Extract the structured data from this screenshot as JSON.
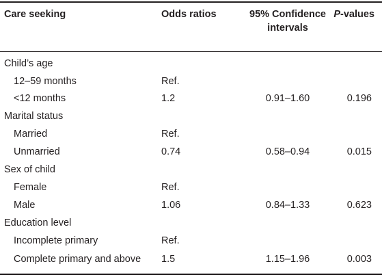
{
  "header": {
    "care_seeking": "Care seeking",
    "odds_ratios": "Odds ratios",
    "ci_line1": "95% Confidence",
    "ci_line2": "intervals",
    "p_italic": "P",
    "p_rest": "-values"
  },
  "rows": [
    {
      "label": "Child’s age",
      "or": "",
      "ci": "",
      "p": ""
    },
    {
      "label": "12–59 months",
      "or": "Ref.",
      "ci": "",
      "p": ""
    },
    {
      "label": "<12 months",
      "or": "1.2",
      "ci": "0.91–1.60",
      "p": "0.196"
    },
    {
      "label": "Marital status",
      "or": "",
      "ci": "",
      "p": ""
    },
    {
      "label": "Married",
      "or": "Ref.",
      "ci": "",
      "p": ""
    },
    {
      "label": "Unmarried",
      "or": "0.74",
      "ci": "0.58–0.94",
      "p": "0.015"
    },
    {
      "label": "Sex of child",
      "or": "",
      "ci": "",
      "p": ""
    },
    {
      "label": "Female",
      "or": "Ref.",
      "ci": "",
      "p": ""
    },
    {
      "label": "Male",
      "or": "1.06",
      "ci": "0.84–1.33",
      "p": "0.623"
    },
    {
      "label": "Education level",
      "or": "",
      "ci": "",
      "p": ""
    },
    {
      "label": "Incomplete primary",
      "or": "Ref.",
      "ci": "",
      "p": ""
    },
    {
      "label": "Complete primary and above",
      "or": "1.5",
      "ci": "1.15–1.96",
      "p": "0.003"
    }
  ]
}
